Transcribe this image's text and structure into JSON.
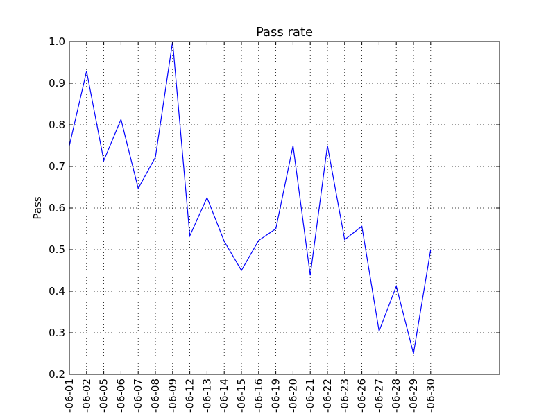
{
  "chart_data": {
    "type": "line",
    "title": "Pass rate",
    "xlabel": "",
    "ylabel": "Pass",
    "ylim": [
      0.2,
      1.0
    ],
    "yticks": [
      "0.2",
      "0.3",
      "0.4",
      "0.5",
      "0.6",
      "0.7",
      "0.8",
      "0.9",
      "1.0"
    ],
    "grid": true,
    "categories": [
      "-06-01",
      "-06-02",
      "-06-05",
      "-06-06",
      "-06-07",
      "-06-08",
      "-06-09",
      "-06-12",
      "-06-13",
      "-06-14",
      "-06-15",
      "-06-16",
      "-06-19",
      "-06-20",
      "-06-21",
      "-06-22",
      "-06-23",
      "-06-26",
      "-06-27",
      "-06-28",
      "-06-29",
      "-06-30"
    ],
    "series": [
      {
        "color": "#0000ff",
        "values": [
          0.75,
          0.929,
          0.714,
          0.813,
          0.647,
          0.722,
          1.0,
          0.533,
          0.625,
          0.52,
          0.45,
          0.522,
          0.55,
          0.75,
          0.438,
          0.75,
          0.524,
          0.556,
          0.304,
          0.412,
          0.25,
          0.5
        ]
      }
    ],
    "x_axis_slots": 25
  }
}
